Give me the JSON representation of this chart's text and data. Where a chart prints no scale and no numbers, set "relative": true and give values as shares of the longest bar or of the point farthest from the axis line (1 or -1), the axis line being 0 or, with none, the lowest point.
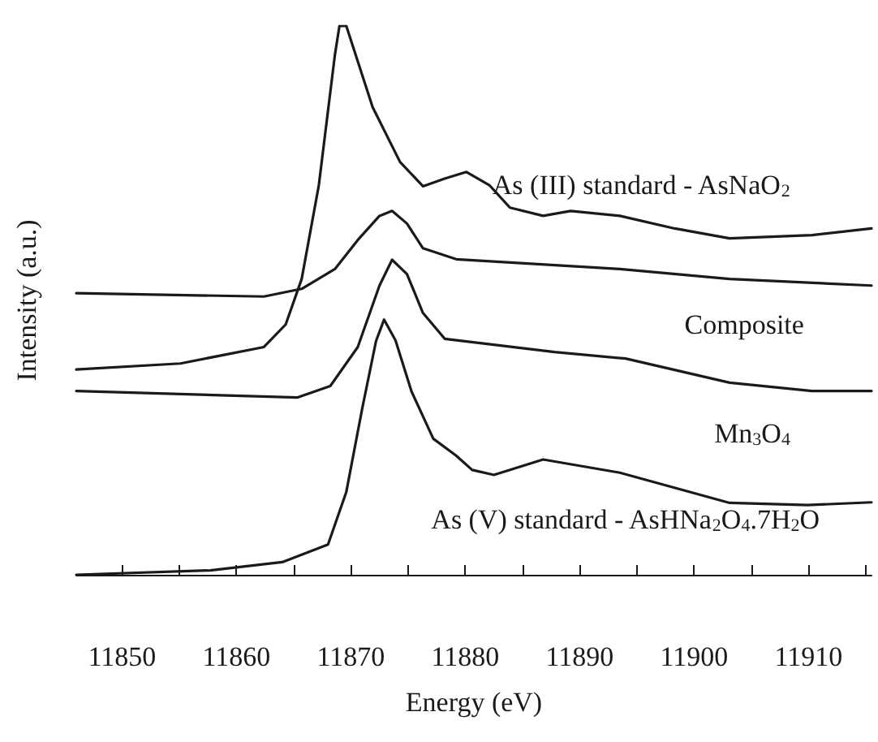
{
  "chart_data": {
    "type": "line",
    "relative": true,
    "xlabel": "Energy (eV)",
    "ylabel": "Intensity (a.u.)",
    "xlim": [
      11846,
      11915.5
    ],
    "xticks": [
      11850,
      {
        "value": 11855,
        "label": null
      },
      11860,
      {
        "value": 11865,
        "label": null
      },
      11870,
      {
        "value": 11875,
        "label": null
      },
      11880,
      {
        "value": 11885,
        "label": null
      },
      11890,
      {
        "value": 11895,
        "label": null
      },
      11900,
      {
        "value": 11905,
        "label": null
      },
      11910,
      {
        "value": 11915,
        "label": null
      }
    ],
    "grid": false,
    "legend": false,
    "marker": "none",
    "line_style": "solid",
    "series": [
      {
        "name": "As (III) standard - AsNaO$_{2}$",
        "color": "#1a1a1a",
        "x": [
          11846,
          11855.1,
          11862.4,
          11864.3,
          11865.7,
          11867.2,
          11868.6,
          11869.0,
          11869.6,
          11871.9,
          11874.3,
          11876.3,
          11878.2,
          11880.1,
          11882.1,
          11883.9,
          11886.8,
          11889.2,
          11893.5,
          11898.3,
          11903.1,
          11910.3,
          11915.5
        ],
        "values": [
          0.374,
          0.385,
          0.415,
          0.456,
          0.539,
          0.71,
          0.947,
          1.0,
          1.0,
          0.852,
          0.752,
          0.708,
          0.722,
          0.734,
          0.71,
          0.669,
          0.654,
          0.663,
          0.654,
          0.631,
          0.613,
          0.619,
          0.631
        ]
      },
      {
        "name": "Composite",
        "color": "#1a1a1a",
        "x": [
          11846,
          11862.4,
          11865.7,
          11868.6,
          11870.6,
          11872.5,
          11873.6,
          11874.9,
          11876.3,
          11879.2,
          11893.5,
          11903.1,
          11915.5
        ],
        "values": [
          0.513,
          0.507,
          0.521,
          0.557,
          0.61,
          0.654,
          0.663,
          0.64,
          0.595,
          0.575,
          0.557,
          0.539,
          0.527
        ]
      },
      {
        "name": "Mn$_{3}$O$_{4}$",
        "color": "#1a1a1a",
        "x": [
          11846,
          11865.3,
          11868.2,
          11870.6,
          11872.5,
          11873.6,
          11874.9,
          11876.3,
          11878.2,
          11887.8,
          11894.0,
          11903.1,
          11910.3,
          11915.5
        ],
        "values": [
          0.335,
          0.323,
          0.344,
          0.415,
          0.527,
          0.574,
          0.548,
          0.477,
          0.43,
          0.406,
          0.394,
          0.35,
          0.335,
          0.335
        ]
      },
      {
        "name": "As (V) standard - AsHNa$_{2}$O$_{4}$.7H$_{2}$O",
        "color": "#1a1a1a",
        "x": [
          11846,
          11857.7,
          11864.0,
          11868.0,
          11869.6,
          11871.0,
          11872.2,
          11872.9,
          11873.9,
          11875.3,
          11877.2,
          11879.2,
          11880.6,
          11882.5,
          11886.8,
          11893.5,
          11903.1,
          11909.9,
          11915.5
        ],
        "values": [
          0,
          0.008,
          0.023,
          0.055,
          0.151,
          0.304,
          0.426,
          0.465,
          0.427,
          0.334,
          0.248,
          0.217,
          0.191,
          0.182,
          0.21,
          0.186,
          0.131,
          0.127,
          0.132
        ]
      }
    ]
  }
}
